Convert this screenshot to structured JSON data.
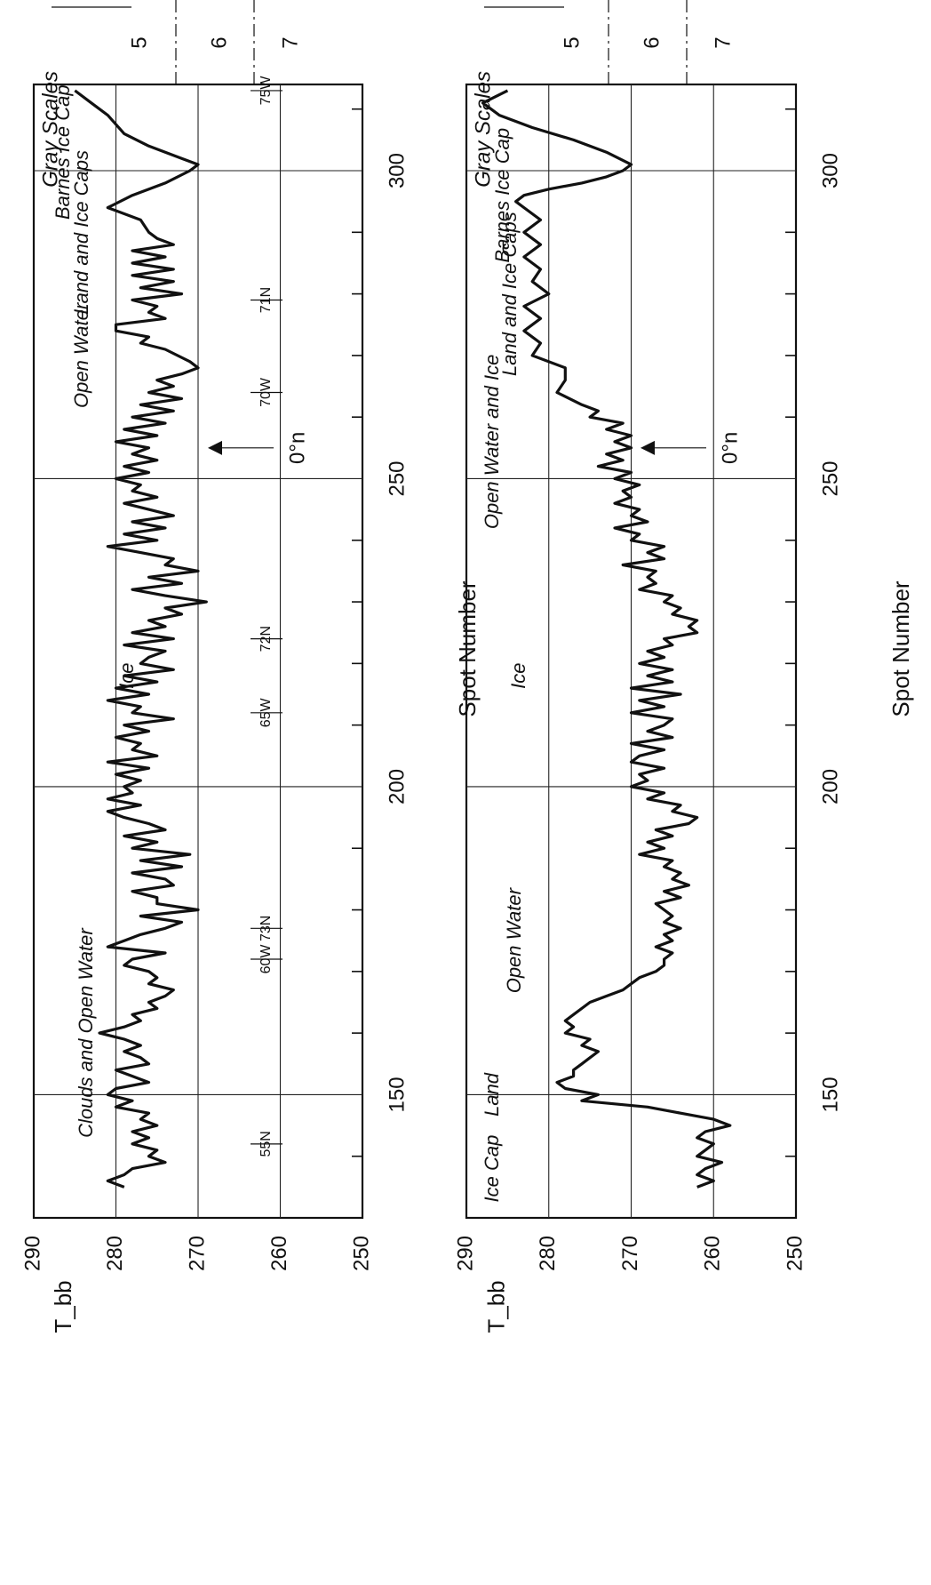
{
  "chart_data": [
    {
      "type": "line",
      "xlabel": "Spot Number",
      "ylabel": "T_bb",
      "ylim": [
        250,
        290
      ],
      "xlim": [
        130,
        314
      ],
      "x_ticks": [
        150,
        200,
        250,
        300
      ],
      "y_ticks": [
        250,
        260,
        270,
        280,
        290
      ],
      "grid": true,
      "gray_scales": {
        "label": "Gray Scales",
        "levels": [
          "5",
          "6",
          "7"
        ]
      },
      "region_labels": [
        "Barnes Ice Cap",
        "Land and Ice Caps",
        "Open Water",
        "Ice",
        "Clouds and Open Water"
      ],
      "geo_labels": [
        "75W",
        "71N",
        "70W",
        "72N",
        "65W",
        "73N",
        "60W",
        "55N"
      ],
      "annotation": "0°n",
      "series": [
        {
          "x": [
            313,
            311,
            309,
            306,
            304,
            302,
            301,
            300,
            298,
            296,
            294,
            292,
            290,
            289,
            288,
            287,
            286,
            285,
            284,
            283,
            282,
            281,
            280,
            279,
            278,
            277,
            276,
            275,
            274,
            273,
            272,
            271,
            269,
            268,
            267,
            266,
            265,
            264,
            263,
            262,
            261,
            260,
            259,
            258,
            257,
            256,
            255,
            254,
            253,
            252,
            251,
            250,
            249,
            248,
            247,
            246,
            245,
            244,
            243,
            242,
            241,
            240,
            239,
            238,
            237,
            236,
            235,
            234,
            233,
            232,
            231,
            230,
            229,
            228,
            227,
            226,
            225,
            224,
            223,
            222,
            221,
            220,
            219,
            218,
            217,
            216,
            215,
            214,
            213,
            212,
            211,
            210,
            209,
            208,
            207,
            206,
            205,
            204,
            203,
            202,
            201,
            200,
            199,
            198,
            197,
            196,
            195,
            194,
            193,
            192,
            191,
            190,
            189,
            188,
            187,
            186,
            185,
            184,
            183,
            182,
            181,
            180,
            179,
            178,
            177,
            176,
            175,
            174,
            173,
            172,
            171,
            170,
            169,
            168,
            167,
            166,
            165,
            164,
            163,
            162,
            161,
            160,
            159,
            158,
            157,
            156,
            155,
            154,
            153,
            152,
            151,
            150,
            149,
            148,
            147,
            146,
            145,
            144,
            143,
            142,
            141,
            140,
            139,
            138,
            137,
            136,
            135
          ],
          "y": [
            285,
            283,
            281,
            279,
            276,
            272,
            270,
            271,
            274,
            278,
            281,
            277,
            276,
            275,
            273,
            278,
            274,
            278,
            273,
            278,
            273,
            277,
            272,
            278,
            275,
            276,
            274,
            280,
            280,
            276,
            277,
            274,
            271,
            270,
            272,
            275,
            273,
            276,
            272,
            277,
            273,
            278,
            274,
            279,
            275,
            280,
            276,
            278,
            275,
            279,
            276,
            280,
            277,
            278,
            275,
            279,
            276,
            273,
            278,
            274,
            279,
            275,
            281,
            277,
            273,
            274,
            270,
            276,
            272,
            278,
            274,
            269,
            274,
            272,
            276,
            274,
            278,
            273,
            279,
            274,
            276,
            277,
            273,
            279,
            275,
            280,
            276,
            281,
            277,
            278,
            273,
            279,
            276,
            280,
            277,
            278,
            275,
            281,
            276,
            280,
            277,
            279,
            278,
            281,
            277,
            281,
            279,
            276,
            274,
            279,
            275,
            278,
            271,
            277,
            272,
            278,
            274,
            273,
            278,
            275,
            275,
            270,
            277,
            272,
            274,
            277,
            279,
            281,
            274,
            278,
            279,
            276,
            275,
            276,
            273,
            274,
            276,
            275,
            278,
            277,
            279,
            282,
            279,
            277,
            279,
            277,
            276,
            280,
            278,
            276,
            280,
            281,
            278,
            280,
            276,
            277,
            275,
            278,
            276,
            278,
            275,
            276,
            274,
            278,
            279,
            281,
            279
          ]
        }
      ]
    },
    {
      "type": "line",
      "xlabel": "Spot Number",
      "ylabel": "T_bb",
      "ylim": [
        250,
        290
      ],
      "xlim": [
        130,
        314
      ],
      "x_ticks": [
        150,
        200,
        250,
        300
      ],
      "y_ticks": [
        250,
        260,
        270,
        280,
        290
      ],
      "grid": true,
      "gray_scales": {
        "label": "Gray Scales",
        "levels": [
          "5",
          "6",
          "7"
        ]
      },
      "region_labels": [
        "Barnes Ice Cap",
        "Land and Ice Caps",
        "Open Water and Ice",
        "Ice",
        "Open Water",
        "Land",
        "Ice Cap"
      ],
      "annotation": "0°n",
      "series": [
        {
          "x": [
            313,
            311,
            309,
            307,
            305,
            303,
            301,
            300,
            299,
            298,
            297,
            296,
            295,
            294,
            292,
            290,
            288,
            286,
            284,
            282,
            280,
            278,
            276,
            274,
            272,
            270,
            268,
            266,
            264,
            262,
            261,
            260,
            259,
            258,
            257,
            256,
            255,
            254,
            253,
            252,
            251,
            250,
            249,
            248,
            247,
            246,
            245,
            244,
            243,
            242,
            241,
            240,
            239,
            238,
            237,
            236,
            235,
            234,
            233,
            232,
            231,
            230,
            229,
            228,
            227,
            226,
            225,
            224,
            223,
            222,
            221,
            220,
            219,
            218,
            217,
            216,
            215,
            214,
            213,
            212,
            211,
            210,
            209,
            208,
            207,
            206,
            205,
            204,
            203,
            202,
            201,
            200,
            199,
            198,
            197,
            196,
            195,
            194,
            193,
            192,
            191,
            190,
            189,
            188,
            187,
            186,
            185,
            184,
            183,
            182,
            181,
            180,
            179,
            178,
            177,
            176,
            175,
            174,
            173,
            172,
            171,
            170,
            169,
            168,
            167,
            166,
            165,
            164,
            163,
            162,
            161,
            160,
            159,
            158,
            157,
            156,
            155,
            154,
            153,
            152,
            151,
            150,
            149,
            148,
            147,
            146,
            145,
            144,
            143,
            142,
            141,
            140,
            139,
            138,
            137,
            136,
            135
          ],
          "y": [
            285,
            288,
            286,
            282,
            277,
            273,
            270,
            271,
            273,
            276,
            280,
            283,
            284,
            283,
            281,
            283,
            281,
            283,
            281,
            282,
            280,
            283,
            281,
            283,
            281,
            282,
            278,
            278,
            279,
            276,
            274,
            275,
            271,
            273,
            270,
            272,
            270,
            273,
            271,
            274,
            270,
            272,
            269,
            271,
            270,
            272,
            269,
            270,
            268,
            272,
            269,
            270,
            266,
            268,
            266,
            271,
            267,
            268,
            267,
            269,
            265,
            266,
            264,
            265,
            262,
            263,
            262,
            266,
            265,
            268,
            266,
            269,
            265,
            268,
            265,
            270,
            264,
            269,
            266,
            270,
            265,
            266,
            268,
            265,
            270,
            266,
            269,
            270,
            266,
            269,
            268,
            270,
            266,
            268,
            264,
            265,
            262,
            263,
            267,
            265,
            268,
            266,
            269,
            265,
            266,
            264,
            265,
            263,
            266,
            264,
            267,
            266,
            265,
            266,
            264,
            266,
            265,
            267,
            265,
            266,
            266,
            267,
            269,
            270,
            271,
            273,
            275,
            276,
            277,
            278,
            277,
            278,
            275,
            276,
            274,
            275,
            276,
            277,
            277,
            279,
            278,
            274,
            276,
            268,
            264,
            260,
            258,
            261,
            262,
            260,
            261,
            262,
            259,
            261,
            262,
            260,
            262
          ]
        }
      ]
    }
  ]
}
